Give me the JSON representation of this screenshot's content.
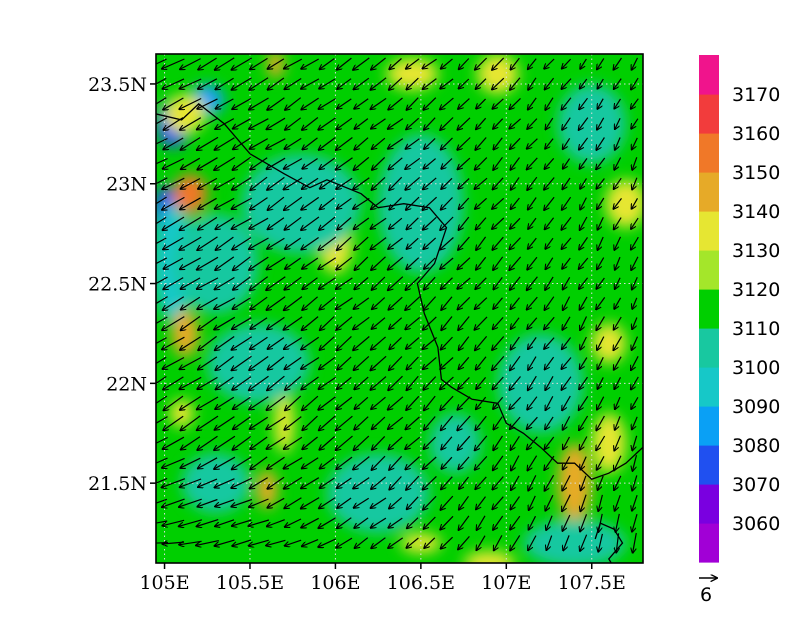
{
  "chart_data": {
    "type": "heatmap",
    "title": "",
    "xlabel": "",
    "ylabel": "",
    "xlim": [
      104.95,
      107.8
    ],
    "ylim": [
      21.1,
      23.65
    ],
    "x_ticks": [
      {
        "value": 105.0,
        "label": "105E"
      },
      {
        "value": 105.5,
        "label": "105.5E"
      },
      {
        "value": 106.0,
        "label": "106E"
      },
      {
        "value": 106.5,
        "label": "106.5E"
      },
      {
        "value": 107.0,
        "label": "107E"
      },
      {
        "value": 107.5,
        "label": "107.5E"
      }
    ],
    "y_ticks": [
      {
        "value": 21.5,
        "label": "21.5N"
      },
      {
        "value": 22.0,
        "label": "22N"
      },
      {
        "value": 22.5,
        "label": "22.5N"
      },
      {
        "value": 23.0,
        "label": "23N"
      },
      {
        "value": 23.5,
        "label": "23.5N"
      }
    ],
    "grid": true,
    "legend": "right",
    "colorbar": {
      "labels": [
        "3060",
        "3070",
        "3080",
        "3090",
        "3100",
        "3110",
        "3120",
        "3130",
        "3140",
        "3150",
        "3160",
        "3170"
      ],
      "colors": [
        "#a100d6",
        "#7a00e0",
        "#2050f0",
        "#0aa0f5",
        "#16c8c8",
        "#18c8a0",
        "#00cf00",
        "#a4e62a",
        "#e6e632",
        "#e6aa28",
        "#f07828",
        "#f23c3c",
        "#f0148c"
      ]
    },
    "reference_vector": {
      "label": "6"
    },
    "background_level": "3110",
    "field_blobs": [
      {
        "x": 105.05,
        "y": 23.3,
        "rx": 0.1,
        "ry": 0.12,
        "level": "3070"
      },
      {
        "x": 105.0,
        "y": 22.85,
        "rx": 0.07,
        "ry": 0.14,
        "level": "3070"
      },
      {
        "x": 105.25,
        "y": 23.42,
        "rx": 0.1,
        "ry": 0.08,
        "level": "3080"
      },
      {
        "x": 105.05,
        "y": 22.6,
        "rx": 0.12,
        "ry": 0.3,
        "level": "3090"
      },
      {
        "x": 105.15,
        "y": 22.95,
        "rx": 0.1,
        "ry": 0.1,
        "level": "3150"
      },
      {
        "x": 105.12,
        "y": 22.25,
        "rx": 0.08,
        "ry": 0.12,
        "level": "3140"
      },
      {
        "x": 105.12,
        "y": 23.35,
        "rx": 0.12,
        "ry": 0.1,
        "level": "3130"
      },
      {
        "x": 105.6,
        "y": 21.47,
        "rx": 0.06,
        "ry": 0.1,
        "level": "3140"
      },
      {
        "x": 105.7,
        "y": 21.8,
        "rx": 0.06,
        "ry": 0.15,
        "level": "3130"
      },
      {
        "x": 105.1,
        "y": 21.85,
        "rx": 0.07,
        "ry": 0.07,
        "level": "3130"
      },
      {
        "x": 106.0,
        "y": 22.7,
        "rx": 0.1,
        "ry": 0.15,
        "level": "3130"
      },
      {
        "x": 107.4,
        "y": 21.5,
        "rx": 0.1,
        "ry": 0.2,
        "level": "3140"
      },
      {
        "x": 107.6,
        "y": 21.7,
        "rx": 0.1,
        "ry": 0.15,
        "level": "3130"
      },
      {
        "x": 107.6,
        "y": 22.2,
        "rx": 0.1,
        "ry": 0.1,
        "level": "3130"
      },
      {
        "x": 107.7,
        "y": 22.9,
        "rx": 0.12,
        "ry": 0.12,
        "level": "3130"
      },
      {
        "x": 106.9,
        "y": 21.1,
        "rx": 0.15,
        "ry": 0.06,
        "level": "3130"
      },
      {
        "x": 106.5,
        "y": 21.2,
        "rx": 0.12,
        "ry": 0.05,
        "level": "3130"
      },
      {
        "x": 106.95,
        "y": 23.55,
        "rx": 0.12,
        "ry": 0.1,
        "level": "3130"
      },
      {
        "x": 105.65,
        "y": 23.6,
        "rx": 0.05,
        "ry": 0.07,
        "level": "3140"
      },
      {
        "x": 106.45,
        "y": 23.55,
        "rx": 0.15,
        "ry": 0.08,
        "level": "3130"
      },
      {
        "x": 106.5,
        "y": 22.9,
        "rx": 0.25,
        "ry": 0.35,
        "level": "3100"
      },
      {
        "x": 105.55,
        "y": 22.1,
        "rx": 0.3,
        "ry": 0.2,
        "level": "3100"
      },
      {
        "x": 105.8,
        "y": 22.9,
        "rx": 0.35,
        "ry": 0.25,
        "level": "3100"
      },
      {
        "x": 106.25,
        "y": 21.45,
        "rx": 0.3,
        "ry": 0.2,
        "level": "3100"
      },
      {
        "x": 107.2,
        "y": 22.0,
        "rx": 0.25,
        "ry": 0.25,
        "level": "3100"
      },
      {
        "x": 107.4,
        "y": 21.2,
        "rx": 0.3,
        "ry": 0.12,
        "level": "3100"
      },
      {
        "x": 106.7,
        "y": 21.7,
        "rx": 0.15,
        "ry": 0.15,
        "level": "3100"
      },
      {
        "x": 105.3,
        "y": 21.5,
        "rx": 0.2,
        "ry": 0.15,
        "level": "3100"
      },
      {
        "x": 107.5,
        "y": 23.3,
        "rx": 0.2,
        "ry": 0.2,
        "level": "3100"
      },
      {
        "x": 105.3,
        "y": 22.6,
        "rx": 0.25,
        "ry": 0.25,
        "level": "3100"
      }
    ],
    "wind_field": {
      "x_start": 104.95,
      "x_step": 0.1,
      "nx": 29,
      "y_start": 21.2,
      "y_step": 0.1,
      "ny": 25,
      "u_west": -5.2,
      "u_east": -1.4,
      "v_north": -2.6,
      "v_south": -3.4,
      "south_west_u": -5.8,
      "south_west_v": 0.0,
      "south_east_u": -0.5,
      "south_east_v": -4.8
    },
    "boundary_line": [
      [
        104.95,
        23.35
      ],
      [
        105.1,
        23.32
      ],
      [
        105.2,
        23.4
      ],
      [
        105.35,
        23.3
      ],
      [
        105.5,
        23.15
      ],
      [
        105.7,
        23.05
      ],
      [
        105.85,
        22.98
      ],
      [
        105.95,
        23.02
      ],
      [
        106.15,
        22.95
      ],
      [
        106.25,
        22.88
      ],
      [
        106.4,
        22.9
      ],
      [
        106.55,
        22.88
      ],
      [
        106.65,
        22.78
      ],
      [
        106.58,
        22.6
      ],
      [
        106.48,
        22.5
      ],
      [
        106.52,
        22.35
      ],
      [
        106.6,
        22.18
      ],
      [
        106.62,
        22.02
      ],
      [
        106.68,
        21.98
      ],
      [
        106.8,
        21.92
      ],
      [
        106.95,
        21.9
      ],
      [
        107.0,
        21.8
      ],
      [
        107.1,
        21.75
      ],
      [
        107.2,
        21.68
      ],
      [
        107.3,
        21.6
      ],
      [
        107.4,
        21.6
      ],
      [
        107.5,
        21.52
      ],
      [
        107.6,
        21.55
      ],
      [
        107.7,
        21.6
      ],
      [
        107.8,
        21.68
      ]
    ],
    "coast_line": [
      [
        107.52,
        21.22
      ],
      [
        107.55,
        21.3
      ],
      [
        107.63,
        21.27
      ],
      [
        107.68,
        21.2
      ],
      [
        107.6,
        21.12
      ],
      [
        107.65,
        21.05
      ]
    ]
  }
}
